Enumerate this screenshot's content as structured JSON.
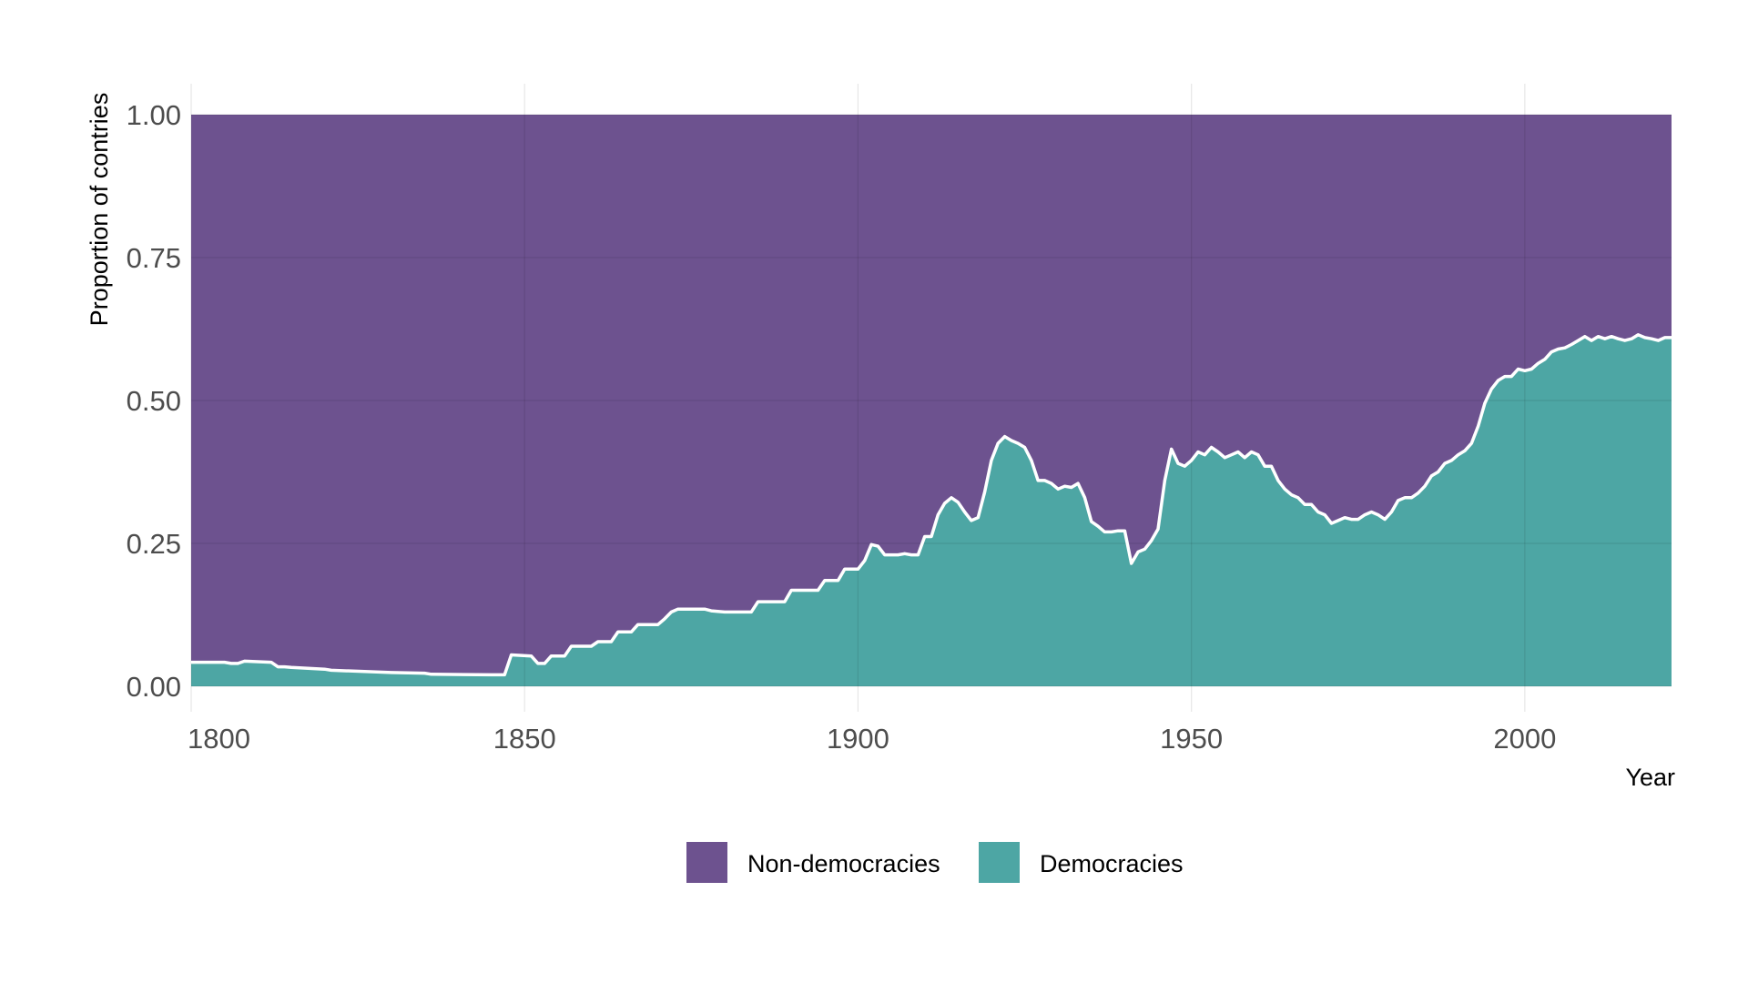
{
  "chart_data": {
    "type": "area",
    "stacked": "fill",
    "xlabel": "Year",
    "ylabel": "Proportion of contries",
    "xlim": [
      1800,
      2022
    ],
    "ylim": [
      0,
      1
    ],
    "x_ticks": [
      1800,
      1850,
      1900,
      1950,
      2000
    ],
    "y_ticks": [
      0,
      0.25,
      0.5,
      0.75,
      1
    ],
    "y_tick_labels": [
      "0.00",
      "0.25",
      "0.50",
      "0.75",
      "1.00"
    ],
    "grid": true,
    "legend_position": "bottom",
    "colors": {
      "non_democracies": "#6D528F",
      "democracies": "#4DA6A4",
      "boundary": "#ffffff"
    },
    "series": [
      {
        "name": "Non-democracies",
        "note_top_fill": 1.0
      },
      {
        "name": "Democracies"
      }
    ],
    "x": [
      1800,
      1805,
      1806,
      1807,
      1808,
      1812,
      1813,
      1814,
      1815,
      1820,
      1821,
      1830,
      1835,
      1836,
      1845,
      1847,
      1848,
      1851,
      1852,
      1853,
      1854,
      1855,
      1856,
      1857,
      1860,
      1861,
      1863,
      1864,
      1866,
      1867,
      1870,
      1871,
      1872,
      1873,
      1875,
      1877,
      1878,
      1880,
      1882,
      1884,
      1885,
      1887,
      1889,
      1890,
      1892,
      1894,
      1895,
      1897,
      1898,
      1900,
      1901,
      1902,
      1903,
      1904,
      1905,
      1906,
      1907,
      1908,
      1909,
      1910,
      1911,
      1912,
      1913,
      1914,
      1915,
      1916,
      1917,
      1918,
      1919,
      1920,
      1921,
      1922,
      1923,
      1924,
      1925,
      1926,
      1927,
      1928,
      1929,
      1930,
      1931,
      1932,
      1933,
      1934,
      1935,
      1936,
      1937,
      1938,
      1939,
      1940,
      1941,
      1942,
      1943,
      1944,
      1945,
      1946,
      1947,
      1948,
      1949,
      1950,
      1951,
      1952,
      1953,
      1954,
      1955,
      1956,
      1957,
      1958,
      1959,
      1960,
      1961,
      1962,
      1963,
      1964,
      1965,
      1966,
      1967,
      1968,
      1969,
      1970,
      1971,
      1972,
      1973,
      1974,
      1975,
      1976,
      1977,
      1978,
      1979,
      1980,
      1981,
      1982,
      1983,
      1984,
      1985,
      1986,
      1987,
      1988,
      1989,
      1990,
      1991,
      1992,
      1993,
      1994,
      1995,
      1996,
      1997,
      1998,
      1999,
      2000,
      2001,
      2002,
      2003,
      2004,
      2005,
      2006,
      2007,
      2008,
      2009,
      2010,
      2011,
      2012,
      2013,
      2014,
      2015,
      2016,
      2017,
      2018,
      2019,
      2020,
      2021,
      2022
    ],
    "democracies": [
      0.042,
      0.042,
      0.04,
      0.04,
      0.044,
      0.042,
      0.034,
      0.034,
      0.033,
      0.03,
      0.028,
      0.024,
      0.023,
      0.021,
      0.02,
      0.02,
      0.055,
      0.053,
      0.04,
      0.04,
      0.053,
      0.053,
      0.053,
      0.07,
      0.07,
      0.078,
      0.078,
      0.095,
      0.095,
      0.108,
      0.108,
      0.118,
      0.13,
      0.135,
      0.135,
      0.135,
      0.132,
      0.13,
      0.13,
      0.13,
      0.148,
      0.148,
      0.148,
      0.168,
      0.168,
      0.168,
      0.185,
      0.185,
      0.205,
      0.205,
      0.22,
      0.248,
      0.245,
      0.23,
      0.23,
      0.23,
      0.232,
      0.23,
      0.23,
      0.262,
      0.262,
      0.3,
      0.32,
      0.33,
      0.322,
      0.305,
      0.29,
      0.295,
      0.34,
      0.395,
      0.425,
      0.437,
      0.43,
      0.425,
      0.418,
      0.395,
      0.36,
      0.36,
      0.355,
      0.345,
      0.35,
      0.348,
      0.355,
      0.33,
      0.288,
      0.28,
      0.27,
      0.27,
      0.272,
      0.272,
      0.215,
      0.235,
      0.24,
      0.255,
      0.275,
      0.36,
      0.415,
      0.39,
      0.385,
      0.395,
      0.41,
      0.405,
      0.418,
      0.41,
      0.4,
      0.405,
      0.41,
      0.4,
      0.41,
      0.405,
      0.385,
      0.385,
      0.36,
      0.345,
      0.335,
      0.33,
      0.318,
      0.318,
      0.305,
      0.3,
      0.285,
      0.29,
      0.295,
      0.292,
      0.292,
      0.3,
      0.305,
      0.3,
      0.292,
      0.305,
      0.325,
      0.33,
      0.33,
      0.338,
      0.35,
      0.368,
      0.375,
      0.39,
      0.395,
      0.405,
      0.412,
      0.425,
      0.455,
      0.495,
      0.52,
      0.535,
      0.542,
      0.542,
      0.555,
      0.552,
      0.555,
      0.565,
      0.572,
      0.585,
      0.59,
      0.592,
      0.598,
      0.605,
      0.612,
      0.605,
      0.612,
      0.608,
      0.612,
      0.608,
      0.605,
      0.608,
      0.615,
      0.61,
      0.608,
      0.605,
      0.61,
      0.61
    ]
  },
  "legend": {
    "items": [
      {
        "label": "Non-democracies",
        "color": "#6D528F"
      },
      {
        "label": "Democracies",
        "color": "#4DA6A4"
      }
    ]
  }
}
